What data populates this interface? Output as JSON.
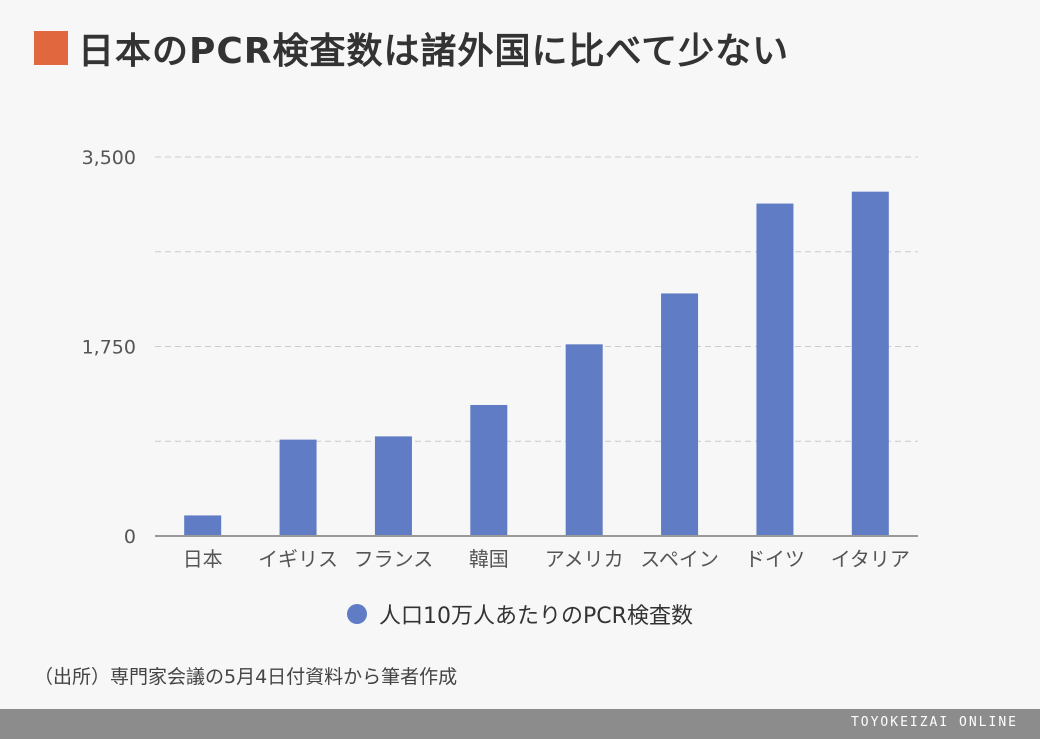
{
  "title": "日本のPCR検査数は諸外国に比べて少ない",
  "source": "（出所）専門家会議の5月4日付資料から筆者作成",
  "footer": {
    "brand": "TOYOKEIZAI ONLINE"
  },
  "colors": {
    "title_marker": "#e0673e",
    "bar": "#5f7cc4",
    "footer": "#8c8c8c",
    "gridline": "#cccccc",
    "axis": "#999999"
  },
  "chart_data": {
    "type": "bar",
    "title": "日本のPCR検査数は諸外国に比べて少ない",
    "categories": [
      "日本",
      "イギリス",
      "フランス",
      "韓国",
      "アメリカ",
      "スペイン",
      "ドイツ",
      "イタリア"
    ],
    "series": [
      {
        "name": "人口10万人あたりのPCR検査数",
        "values": [
          190,
          890,
          920,
          1210,
          1770,
          2240,
          3070,
          3180
        ]
      }
    ],
    "xlabel": "",
    "ylabel": "",
    "ylim": [
      0,
      3500
    ],
    "yticks": [
      0,
      1750,
      3500
    ],
    "ytick_labels": [
      "0",
      "1,750",
      "3,500"
    ],
    "grid": true,
    "legend": "bottom-center"
  }
}
